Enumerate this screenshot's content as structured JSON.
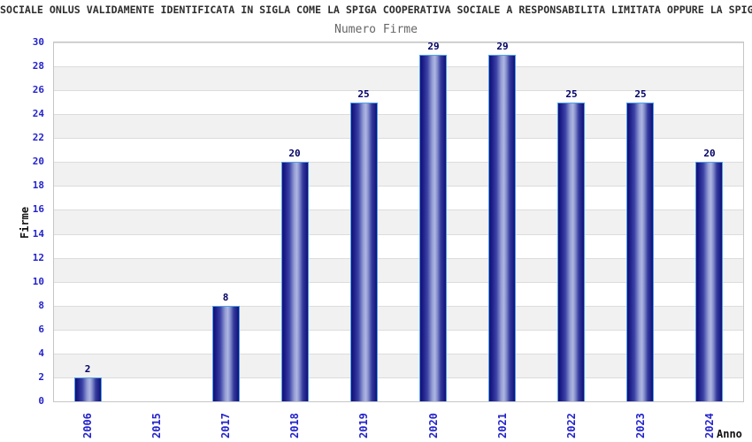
{
  "header": {
    "title": "SOCIALE ONLUS VALIDAMENTE IDENTIFICATA IN SIGLA COME LA SPIGA COOPERATIVA SOCIALE A RESPONSABILITA LIMITATA OPPURE LA SPIG",
    "subtitle": "Numero Firme"
  },
  "chart_data": {
    "type": "bar",
    "title": "SOCIALE ONLUS VALIDAMENTE IDENTIFICATA IN SIGLA COME LA SPIGA COOPERATIVA SOCIALE A RESPONSABILITA LIMITATA OPPURE LA SPIG",
    "subtitle": "Numero Firme",
    "categories": [
      "2006",
      "2015",
      "2017",
      "2018",
      "2019",
      "2020",
      "2021",
      "2022",
      "2023",
      "2024"
    ],
    "values": [
      2,
      0,
      8,
      20,
      25,
      29,
      29,
      25,
      25,
      20
    ],
    "xlabel": "Anno",
    "ylabel": "Firme",
    "ylim": [
      0,
      30
    ],
    "ytick_step": 2,
    "legend": "none",
    "grid": "horizontal-bands-alternating",
    "bar_value_labels_shown": true,
    "colors": {
      "tick_label": "#2323cc",
      "value_label": "#000066",
      "band_gray": "#f1f1f1",
      "band_white": "#ffffff",
      "grid_line": "#dcdcdc",
      "plot_border": "#c6c6c6",
      "bar_border": "#4f9fe6",
      "bar_edge": "#101078",
      "bar_highlight": "#aeb6e2",
      "title": "#2e2e2e",
      "subtitle": "#666666",
      "axis_label": "#111111"
    }
  }
}
